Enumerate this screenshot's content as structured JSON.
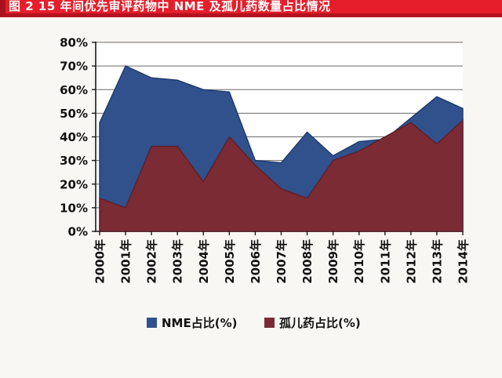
{
  "title_bar": {
    "text": "图 2  15 年间优先审评药物中 NME 及孤儿药数量占比情况"
  },
  "colors": {
    "title_bar_bg": "#e61e2b",
    "title_bar_accent": "#a8121e",
    "title_text": "#ffffff",
    "page_bg": "#f9f7f3",
    "plot_bg": "#ffffff",
    "gridline": "#6a6a6a",
    "axis": "#1a1a1a",
    "nme_fill": "#30518c",
    "nme_stroke": "#1d3a6b",
    "orphan_fill": "#7b2b34",
    "orphan_stroke": "#5c1f29"
  },
  "chart_data": {
    "type": "area",
    "overlap": true,
    "title": "图 2  15 年间优先审评药物中 NME 及孤儿药数量占比情况",
    "categories": [
      "2000年",
      "2001年",
      "2002年",
      "2003年",
      "2004年",
      "2005年",
      "2006年",
      "2007年",
      "2008年",
      "2009年",
      "2010年",
      "2011年",
      "2012年",
      "2013年",
      "2014年"
    ],
    "series": [
      {
        "name": "NME占比(%)",
        "color": "#30518c",
        "values": [
          46,
          70,
          65,
          64,
          60,
          59,
          30,
          29,
          42,
          32,
          38,
          39,
          48,
          57,
          52
        ]
      },
      {
        "name": "孤儿药占比(%)",
        "color": "#7b2b34",
        "values": [
          14,
          10,
          36,
          36,
          21,
          40,
          28,
          18,
          14,
          30,
          34,
          40,
          46,
          37,
          47
        ]
      }
    ],
    "xlabel": "",
    "ylabel": "",
    "ylim": [
      0,
      80
    ],
    "y_tick_step": 10,
    "y_ticks": [
      "0%",
      "10%",
      "20%",
      "30%",
      "40%",
      "50%",
      "60%",
      "70%",
      "80%"
    ],
    "grid": true,
    "x_label_rotation": -90,
    "legend_position": "bottom"
  }
}
